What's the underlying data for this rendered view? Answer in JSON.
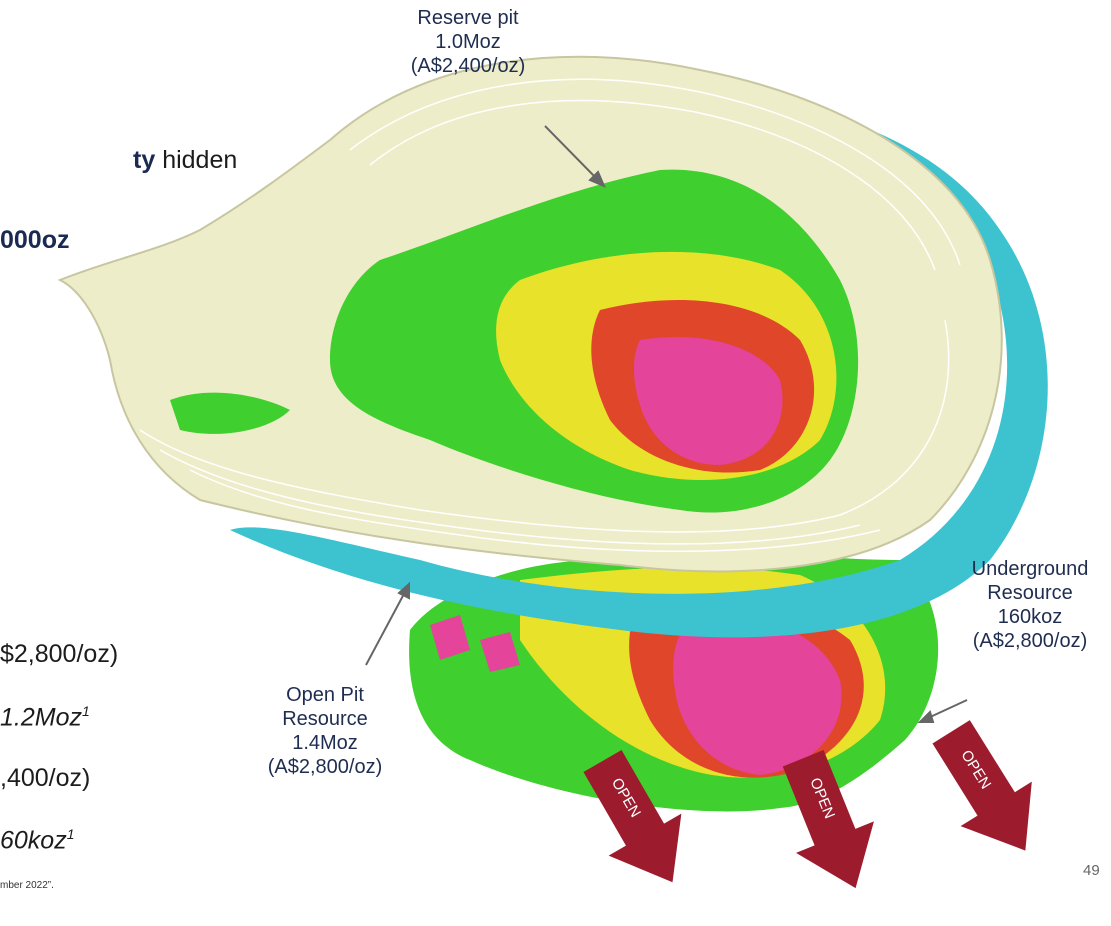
{
  "left_text": {
    "line1_bold": "ty",
    "line1_rest": "hidden",
    "line2_bold": "000oz",
    "line3": "$2,800/oz)",
    "line4": "1.2Moz",
    "line4_sup": "1",
    "line5": ",400/oz)",
    "line6": "60koz",
    "line6_sup": "1",
    "footnote": "mber 2022”."
  },
  "labels": {
    "reserve_pit": [
      "Reserve pit",
      "1.0Moz",
      "(A$2,400/oz)"
    ],
    "open_pit": [
      "Open Pit",
      "Resource",
      "1.4Moz",
      "(A$2,800/oz)"
    ],
    "underground": [
      "Underground",
      "Resource",
      "160koz",
      "(A$2,800/oz)"
    ]
  },
  "arrows": [
    "OPEN",
    "OPEN",
    "OPEN"
  ],
  "page_number": "49"
}
